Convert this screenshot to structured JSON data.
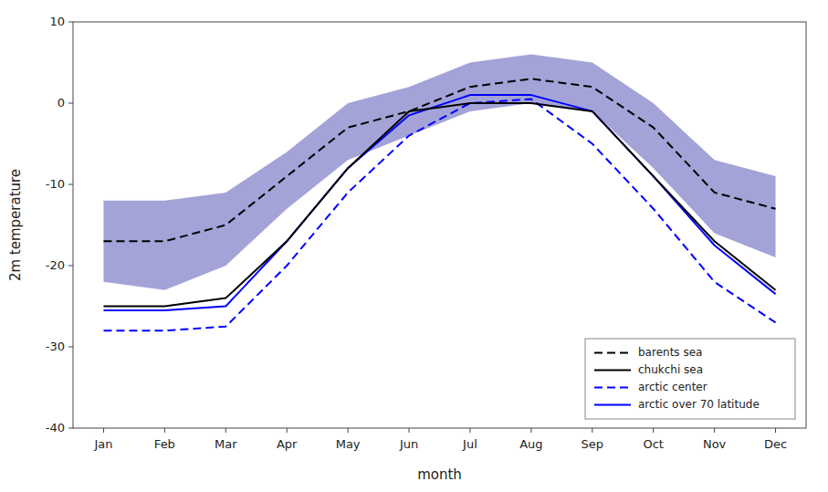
{
  "chart_data": {
    "type": "line",
    "categories": [
      "Jan",
      "Feb",
      "Mar",
      "Apr",
      "May",
      "Jun",
      "Jul",
      "Aug",
      "Sep",
      "Oct",
      "Nov",
      "Dec"
    ],
    "band": {
      "color": "#5858b8",
      "upper": [
        -12,
        -12,
        -11,
        -6,
        0,
        2,
        5,
        6,
        5,
        0,
        -7,
        -9
      ],
      "lower": [
        -22,
        -23,
        -20,
        -13,
        -7,
        -4,
        -1,
        0,
        -1,
        -8,
        -16,
        -19
      ]
    },
    "series": [
      {
        "name": "barents sea",
        "color": "black",
        "line_style": "dashed",
        "values": [
          -17,
          -17,
          -15,
          -9,
          -3,
          -1,
          2,
          3,
          2,
          -3,
          -11,
          -13
        ]
      },
      {
        "name": "chukchi sea",
        "color": "black",
        "line_style": "solid",
        "values": [
          -25,
          -25,
          -24,
          -17,
          -8,
          -1,
          0,
          0,
          -1,
          -9,
          -17,
          -23
        ]
      },
      {
        "name": "arctic center",
        "color": "blue",
        "line_style": "dashed",
        "values": [
          -28,
          -28,
          -27.5,
          -20,
          -11,
          -4,
          0,
          0.5,
          -5,
          -13,
          -22,
          -27
        ]
      },
      {
        "name": "arctic over 70 latitude",
        "color": "blue",
        "line_style": "solid",
        "values": [
          -25.5,
          -25.5,
          -25,
          -17,
          -8,
          -1.5,
          1,
          1,
          -1,
          -9,
          -17.5,
          -23.5
        ]
      }
    ],
    "ylim": [
      -40,
      10
    ],
    "yticks": [
      -40,
      -30,
      -20,
      -10,
      0,
      10
    ],
    "xlabel": "month",
    "ylabel": "2m temperature",
    "legend": "lower right",
    "grid": false
  }
}
